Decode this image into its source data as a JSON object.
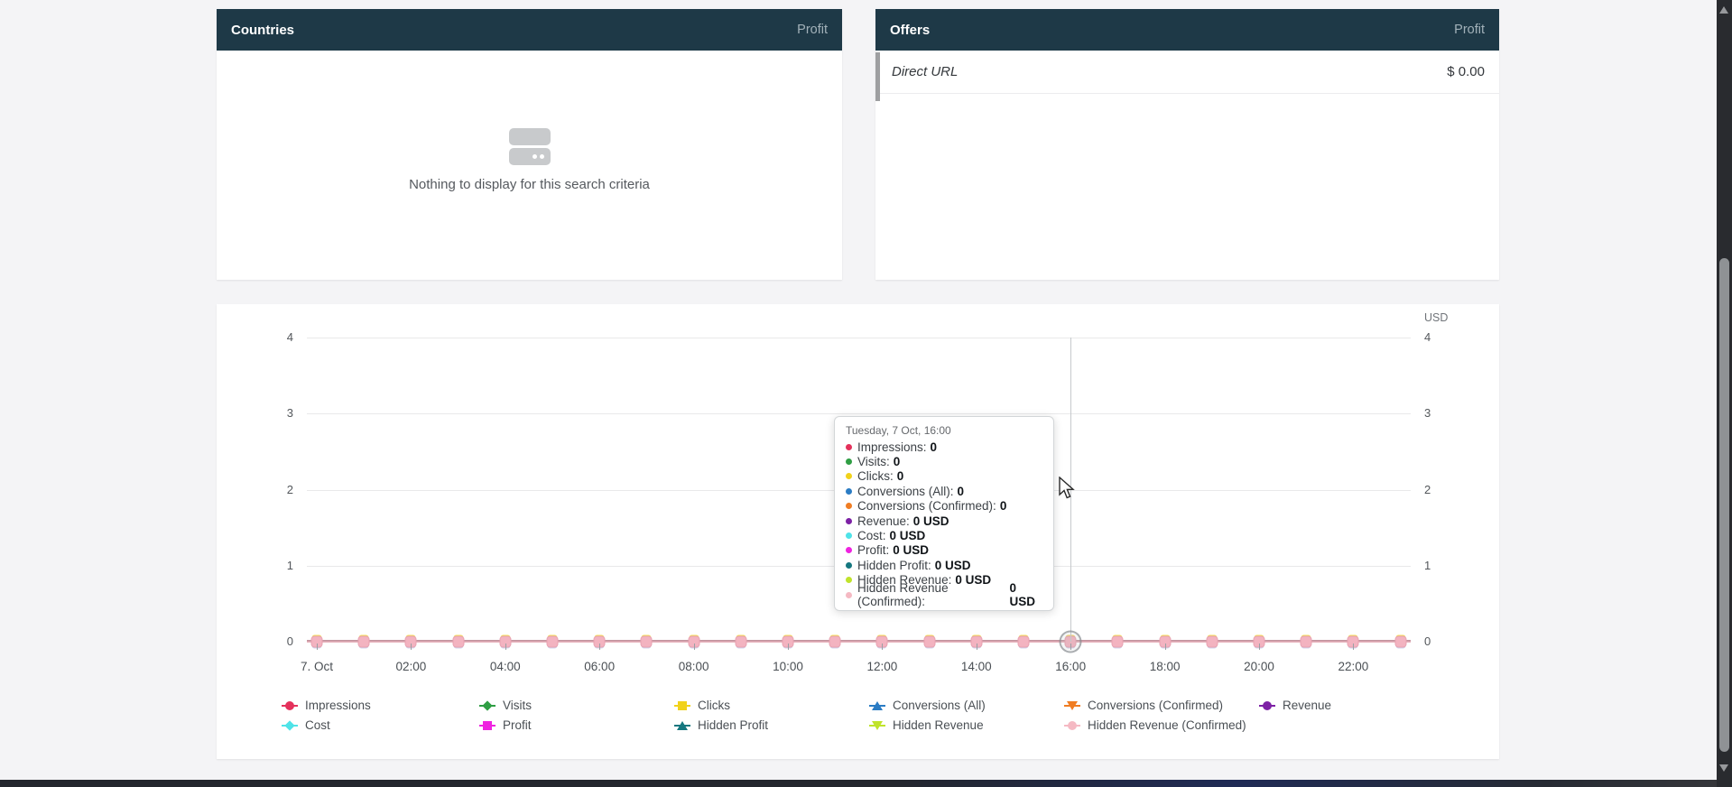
{
  "page": {
    "background": "#f4f4f6",
    "header_color": "#1e3947"
  },
  "countries_panel": {
    "title": "Countries",
    "column_header": "Profit",
    "empty_text": "Nothing to display for this search criteria"
  },
  "offers_panel": {
    "title": "Offers",
    "column_header": "Profit",
    "rows": [
      {
        "label": "Direct URL",
        "value": "$ 0.00"
      }
    ]
  },
  "chart_data": {
    "type": "line",
    "title": "",
    "unit_label": "USD",
    "ylim": [
      0,
      4
    ],
    "y_ticks": [
      "4",
      "3",
      "2",
      "1",
      "0"
    ],
    "grid": true,
    "legend_position": "bottom",
    "x_tick_labels": [
      "7. Oct",
      "02:00",
      "04:00",
      "06:00",
      "08:00",
      "10:00",
      "12:00",
      "14:00",
      "16:00",
      "18:00",
      "20:00",
      "22:00"
    ],
    "x": [
      "00:00",
      "01:00",
      "02:00",
      "03:00",
      "04:00",
      "05:00",
      "06:00",
      "07:00",
      "08:00",
      "09:00",
      "10:00",
      "11:00",
      "12:00",
      "13:00",
      "14:00",
      "15:00",
      "16:00",
      "17:00",
      "18:00",
      "19:00",
      "20:00",
      "21:00",
      "22:00",
      "23:00"
    ],
    "hovered_point_index": 16,
    "series": [
      {
        "name": "Impressions",
        "color": "#e4315b",
        "symbol": "circle",
        "values": [
          0,
          0,
          0,
          0,
          0,
          0,
          0,
          0,
          0,
          0,
          0,
          0,
          0,
          0,
          0,
          0,
          0,
          0,
          0,
          0,
          0,
          0,
          0,
          0
        ]
      },
      {
        "name": "Visits",
        "color": "#2f9e44",
        "symbol": "diamond",
        "values": [
          0,
          0,
          0,
          0,
          0,
          0,
          0,
          0,
          0,
          0,
          0,
          0,
          0,
          0,
          0,
          0,
          0,
          0,
          0,
          0,
          0,
          0,
          0,
          0
        ]
      },
      {
        "name": "Clicks",
        "color": "#f1d21b",
        "symbol": "square",
        "values": [
          0,
          0,
          0,
          0,
          0,
          0,
          0,
          0,
          0,
          0,
          0,
          0,
          0,
          0,
          0,
          0,
          0,
          0,
          0,
          0,
          0,
          0,
          0,
          0
        ]
      },
      {
        "name": "Conversions (All)",
        "color": "#2b7cc4",
        "symbol": "triangle",
        "values": [
          0,
          0,
          0,
          0,
          0,
          0,
          0,
          0,
          0,
          0,
          0,
          0,
          0,
          0,
          0,
          0,
          0,
          0,
          0,
          0,
          0,
          0,
          0,
          0
        ]
      },
      {
        "name": "Conversions (Confirmed)",
        "color": "#f07d23",
        "symbol": "triangle-down",
        "values": [
          0,
          0,
          0,
          0,
          0,
          0,
          0,
          0,
          0,
          0,
          0,
          0,
          0,
          0,
          0,
          0,
          0,
          0,
          0,
          0,
          0,
          0,
          0,
          0
        ]
      },
      {
        "name": "Revenue",
        "color": "#7d21a5",
        "symbol": "circle",
        "values": [
          0,
          0,
          0,
          0,
          0,
          0,
          0,
          0,
          0,
          0,
          0,
          0,
          0,
          0,
          0,
          0,
          0,
          0,
          0,
          0,
          0,
          0,
          0,
          0
        ]
      },
      {
        "name": "Cost",
        "color": "#4fe3e8",
        "symbol": "diamond",
        "values": [
          0,
          0,
          0,
          0,
          0,
          0,
          0,
          0,
          0,
          0,
          0,
          0,
          0,
          0,
          0,
          0,
          0,
          0,
          0,
          0,
          0,
          0,
          0,
          0
        ]
      },
      {
        "name": "Profit",
        "color": "#ef23e0",
        "symbol": "square",
        "values": [
          0,
          0,
          0,
          0,
          0,
          0,
          0,
          0,
          0,
          0,
          0,
          0,
          0,
          0,
          0,
          0,
          0,
          0,
          0,
          0,
          0,
          0,
          0,
          0
        ]
      },
      {
        "name": "Hidden Profit",
        "color": "#15777f",
        "symbol": "triangle",
        "values": [
          0,
          0,
          0,
          0,
          0,
          0,
          0,
          0,
          0,
          0,
          0,
          0,
          0,
          0,
          0,
          0,
          0,
          0,
          0,
          0,
          0,
          0,
          0,
          0
        ]
      },
      {
        "name": "Hidden Revenue",
        "color": "#c0e32b",
        "symbol": "triangle-down",
        "values": [
          0,
          0,
          0,
          0,
          0,
          0,
          0,
          0,
          0,
          0,
          0,
          0,
          0,
          0,
          0,
          0,
          0,
          0,
          0,
          0,
          0,
          0,
          0,
          0
        ]
      },
      {
        "name": "Hidden Revenue (Confirmed)",
        "color": "#f5b9c3",
        "symbol": "circle",
        "values": [
          0,
          0,
          0,
          0,
          0,
          0,
          0,
          0,
          0,
          0,
          0,
          0,
          0,
          0,
          0,
          0,
          0,
          0,
          0,
          0,
          0,
          0,
          0,
          0
        ]
      }
    ]
  },
  "tooltip": {
    "title": "Tuesday, 7 Oct, 16:00",
    "items": [
      {
        "label": "Impressions",
        "value": "0",
        "color": "#e4315b"
      },
      {
        "label": "Visits",
        "value": "0",
        "color": "#2f9e44"
      },
      {
        "label": "Clicks",
        "value": "0",
        "color": "#f1d21b"
      },
      {
        "label": "Conversions (All)",
        "value": "0",
        "color": "#2b7cc4"
      },
      {
        "label": "Conversions (Confirmed)",
        "value": "0",
        "color": "#f07d23"
      },
      {
        "label": "Revenue",
        "value": "0 USD",
        "color": "#7d21a5"
      },
      {
        "label": "Cost",
        "value": "0 USD",
        "color": "#4fe3e8"
      },
      {
        "label": "Profit",
        "value": "0 USD",
        "color": "#ef23e0"
      },
      {
        "label": "Hidden Profit",
        "value": "0 USD",
        "color": "#15777f"
      },
      {
        "label": "Hidden Revenue",
        "value": "0 USD",
        "color": "#c0e32b"
      },
      {
        "label": "Hidden Revenue (Confirmed)",
        "value": "0 USD",
        "color": "#f5b9c3"
      }
    ]
  }
}
